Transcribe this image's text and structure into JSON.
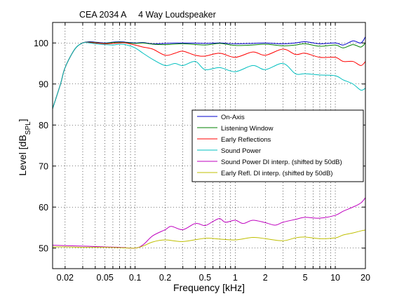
{
  "chart_data": {
    "type": "line",
    "title": "CEA 2034 A     4 Way Loudspeaker",
    "xlabel": "Frequency [kHz]",
    "ylabel": "Level [dB",
    "ylabel_sub": "SPL",
    "ylabel_end": "]",
    "x_scale": "log",
    "xlim": [
      0.015,
      20
    ],
    "ylim": [
      45,
      105
    ],
    "grid": true,
    "legend_position": "center-right",
    "x_ticks": [
      {
        "v": 0.02,
        "label": "0.02"
      },
      {
        "v": 0.05,
        "label": "0.05"
      },
      {
        "v": 0.1,
        "label": "0.1"
      },
      {
        "v": 0.2,
        "label": "0.2"
      },
      {
        "v": 0.5,
        "label": "0.5"
      },
      {
        "v": 1,
        "label": "1"
      },
      {
        "v": 2,
        "label": "2"
      },
      {
        "v": 5,
        "label": "5"
      },
      {
        "v": 10,
        "label": "10"
      },
      {
        "v": 20,
        "label": "20"
      }
    ],
    "y_ticks": [
      {
        "v": 50,
        "label": "50"
      },
      {
        "v": 60,
        "label": "60"
      },
      {
        "v": 70,
        "label": "70"
      },
      {
        "v": 80,
        "label": "80"
      },
      {
        "v": 90,
        "label": "90"
      },
      {
        "v": 100,
        "label": "100"
      }
    ],
    "series": [
      {
        "name": "On-Axis",
        "color": "#0000cc",
        "x": [
          0.015,
          0.018,
          0.02,
          0.025,
          0.03,
          0.035,
          0.04,
          0.05,
          0.06,
          0.07,
          0.08,
          0.1,
          0.12,
          0.15,
          0.2,
          0.3,
          0.5,
          0.7,
          1,
          1.5,
          2,
          3,
          4,
          5,
          7,
          10,
          12,
          15,
          18,
          20
        ],
        "y": [
          84,
          90,
          94,
          98.5,
          100,
          100.3,
          100.2,
          100,
          100.2,
          100.3,
          100.2,
          100,
          100.1,
          99.8,
          99.9,
          100,
          99.9,
          100,
          99.8,
          99.9,
          100,
          99.8,
          100,
          100.3,
          99.8,
          100,
          99.5,
          100.5,
          100,
          101.5
        ]
      },
      {
        "name": "Listening Window",
        "color": "#008000",
        "x": [
          0.015,
          0.018,
          0.02,
          0.025,
          0.03,
          0.035,
          0.04,
          0.05,
          0.06,
          0.07,
          0.08,
          0.1,
          0.12,
          0.15,
          0.2,
          0.3,
          0.5,
          0.7,
          1,
          1.5,
          2,
          3,
          4,
          5,
          7,
          10,
          12,
          15,
          18,
          20
        ],
        "y": [
          84,
          90,
          94,
          98.5,
          100,
          100.2,
          100.1,
          99.9,
          100.1,
          100.2,
          100.1,
          99.9,
          100,
          99.7,
          99.6,
          99.8,
          99.5,
          99.9,
          99.4,
          99.5,
          99.7,
          99.3,
          99.5,
          99.8,
          99.2,
          99.5,
          98.8,
          99.6,
          99,
          100
        ]
      },
      {
        "name": "Early Reflections",
        "color": "#ff0000",
        "x": [
          0.015,
          0.018,
          0.02,
          0.025,
          0.03,
          0.035,
          0.04,
          0.05,
          0.06,
          0.07,
          0.08,
          0.1,
          0.12,
          0.15,
          0.2,
          0.25,
          0.3,
          0.4,
          0.5,
          0.7,
          1,
          1.5,
          2,
          3,
          4,
          5,
          7,
          10,
          12,
          15,
          18,
          20
        ],
        "y": [
          84,
          90,
          94,
          98.5,
          100,
          100.1,
          100,
          99.8,
          99.9,
          100,
          100,
          99.5,
          99,
          98.5,
          97,
          97.5,
          98,
          97,
          96.8,
          97.5,
          96.5,
          97.8,
          97,
          98.5,
          97.2,
          97.5,
          96.5,
          96.5,
          95.5,
          95.5,
          94.5,
          95.5
        ]
      },
      {
        "name": "Sound Power",
        "color": "#00bfbf",
        "x": [
          0.015,
          0.018,
          0.02,
          0.025,
          0.03,
          0.035,
          0.04,
          0.05,
          0.06,
          0.07,
          0.08,
          0.1,
          0.12,
          0.15,
          0.2,
          0.25,
          0.3,
          0.4,
          0.5,
          0.7,
          1,
          1.5,
          2,
          3,
          4,
          5,
          7,
          10,
          12,
          15,
          18,
          20
        ],
        "y": [
          84,
          90,
          94,
          98.5,
          100,
          100,
          99.8,
          99.6,
          99.5,
          99.7,
          99.6,
          98.8,
          97.5,
          96,
          94.5,
          95,
          94.5,
          95.5,
          93.5,
          94,
          93,
          94.5,
          93.5,
          95,
          92.5,
          92.5,
          92.2,
          92,
          91,
          90,
          88.5,
          89
        ]
      },
      {
        "name": "Sound Power DI interp. (shifted by 50dB)",
        "color": "#bf00bf",
        "x": [
          0.015,
          0.02,
          0.03,
          0.05,
          0.07,
          0.1,
          0.12,
          0.15,
          0.2,
          0.23,
          0.3,
          0.4,
          0.5,
          0.6,
          0.7,
          0.8,
          1,
          1.2,
          1.5,
          2,
          2.5,
          3,
          4,
          5,
          7,
          10,
          12,
          15,
          18,
          20
        ],
        "y": [
          50.7,
          50.6,
          50.5,
          50.3,
          50.2,
          50,
          50.8,
          53,
          54.5,
          55.3,
          54.5,
          56,
          55.5,
          56.5,
          57.2,
          56.3,
          56.8,
          56,
          56.8,
          56.2,
          55.6,
          56.3,
          57,
          57.5,
          57.3,
          58,
          59,
          60,
          61,
          62.3
        ]
      },
      {
        "name": "Early Refl. DI interp. (shifted by 50dB)",
        "color": "#bfbf00",
        "x": [
          0.015,
          0.02,
          0.03,
          0.05,
          0.07,
          0.1,
          0.12,
          0.15,
          0.2,
          0.3,
          0.5,
          0.7,
          1,
          1.5,
          2,
          3,
          4,
          5,
          7,
          10,
          12,
          15,
          18,
          20
        ],
        "y": [
          50.3,
          50.3,
          50.2,
          50.2,
          50.1,
          50,
          50.5,
          51.5,
          52,
          51.6,
          52.4,
          52.2,
          52,
          52.6,
          52.3,
          51.8,
          52.5,
          52.7,
          52.3,
          52.5,
          53.2,
          53.7,
          54.2,
          54.4
        ]
      }
    ]
  }
}
